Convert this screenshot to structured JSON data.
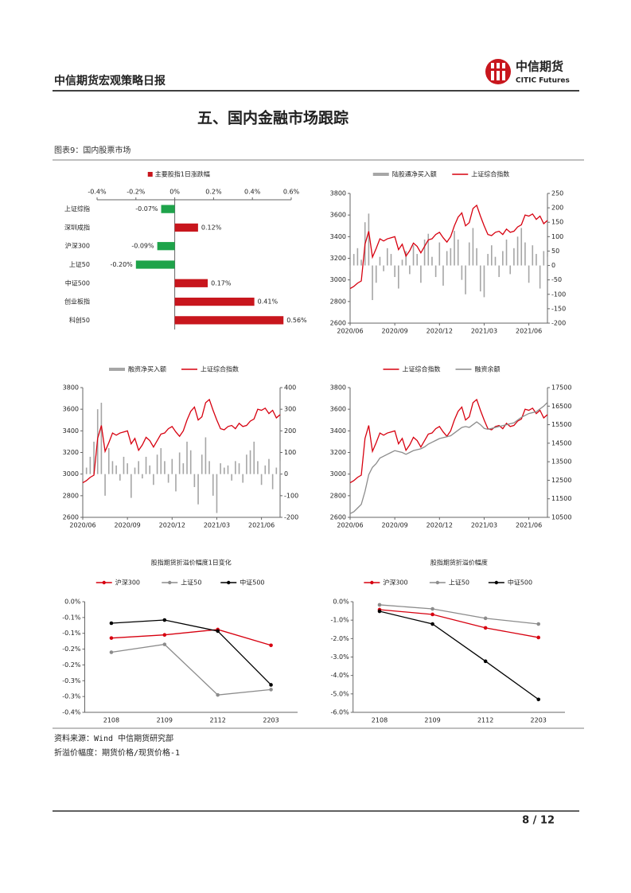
{
  "header": {
    "title": "中信期货宏观策略日报",
    "logo_name": "中信期货",
    "logo_subtitle": "CITIC Futures"
  },
  "section_title": "五、国内金融市场跟踪",
  "figure_caption": "图表9：国内股票市场",
  "notes": [
    "资料来源：Wind 中信期货研究部",
    "折溢价幅度：期货价格/现货价格-1"
  ],
  "page_number": "8 / 12",
  "chart_data": [
    {
      "type": "bar",
      "categories": [
        "上证综指",
        "深圳成指",
        "沪深300",
        "上证50",
        "中证500",
        "创业板指",
        "科创50"
      ],
      "series": [
        {
          "name": "主要股指1日涨跌幅",
          "color": "#c8161d",
          "values": [
            -0.07,
            0.12,
            -0.09,
            -0.2,
            0.17,
            0.41,
            0.56
          ],
          "value_labels": [
            "-0.07%",
            "0.12%",
            "-0.09%",
            "-0.20%",
            "0.17%",
            "0.41%",
            "0.56%"
          ]
        }
      ],
      "negative_color": "#1ea34a",
      "xlim": [
        -0.4,
        0.6
      ],
      "xticks": [
        {
          "value": -0.4,
          "label": "-0.4%"
        },
        {
          "value": -0.2,
          "label": "-0.2%"
        },
        {
          "value": 0,
          "label": "0%"
        },
        {
          "value": 0.2,
          "label": "0.2%"
        },
        {
          "value": 0.4,
          "label": "0.4%"
        },
        {
          "value": 0.6,
          "label": "0.6%"
        }
      ]
    },
    {
      "type": "line",
      "xlim": [
        0,
        53
      ],
      "xticks": [
        {
          "value": 0,
          "label": "2020/06"
        },
        {
          "value": 12,
          "label": "2020/09"
        },
        {
          "value": 24,
          "label": "2020/12"
        },
        {
          "value": 36,
          "label": "2021/03"
        },
        {
          "value": 48,
          "label": "2021/06"
        }
      ],
      "ylim": [
        2600,
        3800
      ],
      "yticks": [
        2600,
        2800,
        3000,
        3200,
        3400,
        3600,
        3800
      ],
      "y2lim": [
        -200,
        250
      ],
      "y2ticks": [
        -200,
        -150,
        -100,
        -50,
        0,
        50,
        100,
        150,
        200,
        250
      ],
      "series": [
        {
          "name": "陆股通净买入额",
          "type": "bar",
          "axis": "y2",
          "color": "#a6a6a6",
          "values": [
            -20,
            40,
            60,
            20,
            150,
            180,
            -120,
            -60,
            30,
            -20,
            60,
            40,
            -40,
            -80,
            20,
            50,
            -30,
            70,
            40,
            -60,
            90,
            110,
            30,
            -40,
            80,
            -70,
            50,
            60,
            120,
            90,
            -50,
            -100,
            80,
            130,
            60,
            -90,
            -110,
            40,
            70,
            30,
            -40,
            50,
            90,
            -30,
            60,
            100,
            130,
            80,
            -60,
            70,
            40,
            -80,
            50,
            30
          ]
        },
        {
          "name": "上证综合指数",
          "type": "line",
          "color": "#d7000f",
          "values": [
            2920,
            2940,
            2970,
            2990,
            3330,
            3450,
            3210,
            3290,
            3380,
            3360,
            3380,
            3390,
            3400,
            3280,
            3330,
            3220,
            3270,
            3340,
            3310,
            3250,
            3310,
            3370,
            3380,
            3420,
            3440,
            3390,
            3350,
            3400,
            3500,
            3580,
            3620,
            3500,
            3530,
            3660,
            3690,
            3590,
            3500,
            3420,
            3410,
            3440,
            3450,
            3420,
            3470,
            3440,
            3450,
            3490,
            3510,
            3600,
            3590,
            3610,
            3560,
            3590,
            3520,
            3550
          ]
        }
      ]
    },
    {
      "type": "line",
      "xlim": [
        0,
        53
      ],
      "xticks": [
        {
          "value": 0,
          "label": "2020/06"
        },
        {
          "value": 12,
          "label": "2020/09"
        },
        {
          "value": 24,
          "label": "2020/12"
        },
        {
          "value": 36,
          "label": "2021/03"
        },
        {
          "value": 48,
          "label": "2021/06"
        }
      ],
      "ylim": [
        2600,
        3800
      ],
      "yticks": [
        2600,
        2800,
        3000,
        3200,
        3400,
        3600,
        3800
      ],
      "y2lim": [
        -200,
        400
      ],
      "y2ticks": [
        -200,
        -100,
        0,
        100,
        200,
        300,
        400
      ],
      "series": [
        {
          "name": "融资净买入额",
          "type": "bar",
          "axis": "y2",
          "color": "#a6a6a6",
          "values": [
            -20,
            30,
            80,
            150,
            300,
            330,
            -100,
            120,
            60,
            40,
            -30,
            80,
            50,
            -110,
            30,
            60,
            -20,
            80,
            40,
            -50,
            90,
            120,
            60,
            -40,
            70,
            -80,
            100,
            50,
            150,
            110,
            -60,
            -140,
            90,
            170,
            60,
            -100,
            -180,
            50,
            30,
            40,
            -30,
            60,
            50,
            -40,
            90,
            110,
            150,
            60,
            -50,
            40,
            70,
            -70,
            30,
            60
          ]
        },
        {
          "name": "上证综合指数",
          "type": "line",
          "color": "#d7000f",
          "values": [
            2920,
            2940,
            2970,
            2990,
            3330,
            3450,
            3210,
            3290,
            3380,
            3360,
            3380,
            3390,
            3400,
            3280,
            3330,
            3220,
            3270,
            3340,
            3310,
            3250,
            3310,
            3370,
            3380,
            3420,
            3440,
            3390,
            3350,
            3400,
            3500,
            3580,
            3620,
            3500,
            3530,
            3660,
            3690,
            3590,
            3500,
            3420,
            3410,
            3440,
            3450,
            3420,
            3470,
            3440,
            3450,
            3490,
            3510,
            3600,
            3590,
            3610,
            3560,
            3590,
            3520,
            3550
          ]
        }
      ]
    },
    {
      "type": "line",
      "xlim": [
        0,
        53
      ],
      "xticks": [
        {
          "value": 0,
          "label": "2020/06"
        },
        {
          "value": 12,
          "label": "2020/09"
        },
        {
          "value": 24,
          "label": "2020/12"
        },
        {
          "value": 36,
          "label": "2021/03"
        },
        {
          "value": 48,
          "label": "2021/06"
        }
      ],
      "ylim": [
        2600,
        3800
      ],
      "yticks": [
        2600,
        2800,
        3000,
        3200,
        3400,
        3600,
        3800
      ],
      "y2lim": [
        10500,
        17500
      ],
      "y2ticks": [
        10500,
        11500,
        12500,
        13500,
        14500,
        15500,
        16500,
        17500
      ],
      "series": [
        {
          "name": "上证综合指数",
          "type": "line",
          "color": "#d7000f",
          "values": [
            2920,
            2940,
            2970,
            2990,
            3330,
            3450,
            3210,
            3290,
            3380,
            3360,
            3380,
            3390,
            3400,
            3280,
            3330,
            3220,
            3270,
            3340,
            3310,
            3250,
            3310,
            3370,
            3380,
            3420,
            3440,
            3390,
            3350,
            3400,
            3500,
            3580,
            3620,
            3500,
            3530,
            3660,
            3690,
            3590,
            3500,
            3420,
            3410,
            3440,
            3450,
            3420,
            3470,
            3440,
            3450,
            3490,
            3510,
            3600,
            3590,
            3610,
            3560,
            3590,
            3520,
            3550
          ]
        },
        {
          "name": "融资余额",
          "type": "line",
          "axis": "y2",
          "color": "#8c8c8c",
          "values": [
            10700,
            10800,
            11000,
            11200,
            11900,
            12800,
            13200,
            13400,
            13700,
            13800,
            13900,
            14000,
            14100,
            14050,
            14000,
            13900,
            14000,
            14100,
            14150,
            14200,
            14300,
            14450,
            14550,
            14650,
            14750,
            14800,
            14850,
            14900,
            15050,
            15200,
            15350,
            15400,
            15350,
            15500,
            15650,
            15500,
            15300,
            15250,
            15300,
            15350,
            15400,
            15450,
            15500,
            15550,
            15600,
            15750,
            15900,
            16000,
            16100,
            16150,
            16200,
            16350,
            16500,
            16700
          ]
        }
      ]
    },
    {
      "type": "line",
      "title": "股指期货折溢价幅度1日变化",
      "markers": true,
      "categories": [
        "2108",
        "2109",
        "2112",
        "2203"
      ],
      "ylim": [
        -0.35,
        0
      ],
      "yticks": [
        {
          "value": 0,
          "label": "0.0%"
        },
        {
          "value": -0.05,
          "label": "-0.1%"
        },
        {
          "value": -0.1,
          "label": "-0.1%"
        },
        {
          "value": -0.15,
          "label": "-0.2%"
        },
        {
          "value": -0.2,
          "label": "-0.2%"
        },
        {
          "value": -0.25,
          "label": "-0.3%"
        },
        {
          "value": -0.3,
          "label": "-0.3%"
        },
        {
          "value": -0.35,
          "label": "-0.4%"
        }
      ],
      "series": [
        {
          "name": "沪深300",
          "type": "line",
          "color": "#d7000f",
          "values": [
            -0.115,
            -0.105,
            -0.088,
            -0.138
          ]
        },
        {
          "name": "上证50",
          "type": "line",
          "color": "#8c8c8c",
          "values": [
            -0.16,
            -0.135,
            -0.295,
            -0.278
          ]
        },
        {
          "name": "中证500",
          "type": "line",
          "color": "#000000",
          "values": [
            -0.068,
            -0.058,
            -0.093,
            -0.263
          ]
        }
      ]
    },
    {
      "type": "line",
      "title": "股指期货折溢价幅度",
      "markers": true,
      "categories": [
        "2108",
        "2109",
        "2112",
        "2203"
      ],
      "ylim": [
        -6,
        0
      ],
      "yticks": [
        {
          "value": 0,
          "label": "0.0%"
        },
        {
          "value": -1,
          "label": "-1.0%"
        },
        {
          "value": -2,
          "label": "-2.0%"
        },
        {
          "value": -3,
          "label": "-3.0%"
        },
        {
          "value": -4,
          "label": "-4.0%"
        },
        {
          "value": -5,
          "label": "-5.0%"
        },
        {
          "value": -6,
          "label": "-6.0%"
        }
      ],
      "series": [
        {
          "name": "沪深300",
          "type": "line",
          "color": "#d7000f",
          "values": [
            -0.43,
            -0.69,
            -1.42,
            -1.94
          ]
        },
        {
          "name": "上证50",
          "type": "line",
          "color": "#8c8c8c",
          "values": [
            -0.17,
            -0.39,
            -0.9,
            -1.21
          ]
        },
        {
          "name": "中证500",
          "type": "line",
          "color": "#000000",
          "values": [
            -0.52,
            -1.21,
            -3.23,
            -5.3
          ]
        }
      ]
    }
  ]
}
